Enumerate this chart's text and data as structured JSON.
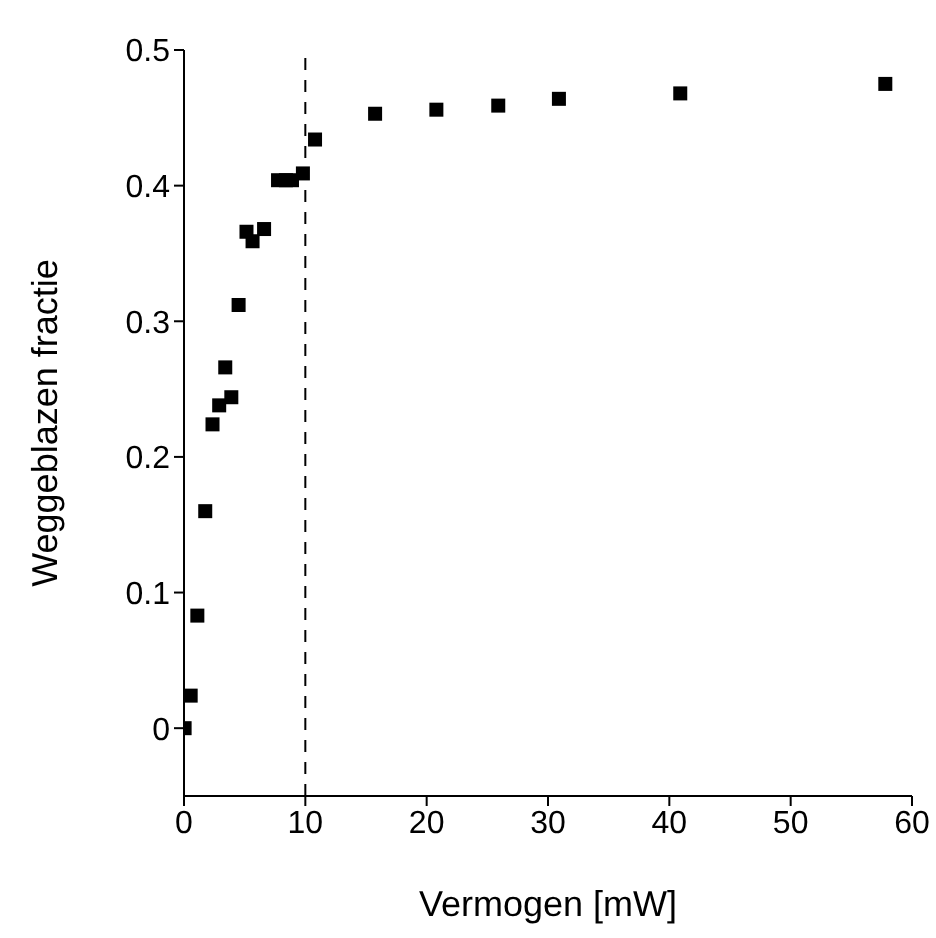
{
  "chart_data": {
    "type": "scatter",
    "xlabel": "Vermogen [mW]",
    "ylabel": "Weggeblazen fractie",
    "x": [
      0.05,
      0.55,
      1.1,
      1.75,
      2.35,
      2.9,
      3.4,
      3.9,
      4.5,
      5.15,
      5.65,
      6.6,
      7.75,
      8.4,
      8.9,
      9.8,
      10.8,
      15.75,
      20.8,
      25.9,
      30.9,
      40.9,
      57.8
    ],
    "series": [
      {
        "color": "#000000",
        "values": [
          0.0,
          0.024,
          0.083,
          0.16,
          0.224,
          0.238,
          0.266,
          0.244,
          0.312,
          0.366,
          0.359,
          0.368,
          0.404,
          0.404,
          0.404,
          0.409,
          0.434,
          0.453,
          0.456,
          0.459,
          0.464,
          0.468,
          0.475
        ]
      }
    ],
    "xlim": [
      0,
      60
    ],
    "xticks": [
      0,
      10,
      20,
      30,
      40,
      50,
      60
    ],
    "ylim": [
      -0.05,
      0.5
    ],
    "yticks": [
      0,
      0.1,
      0.2,
      0.3,
      0.4,
      0.5
    ],
    "marker": "square",
    "grid": false,
    "legend": false,
    "ref_lines": [
      {
        "axis": "x",
        "value": 10,
        "line_style": "dashed",
        "color": "#000000"
      }
    ]
  }
}
